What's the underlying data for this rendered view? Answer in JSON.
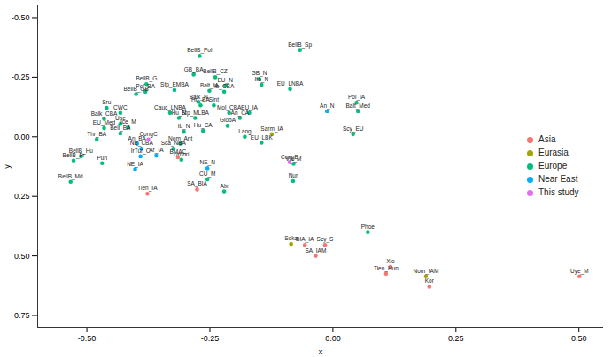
{
  "chart_data": {
    "type": "scatter",
    "x_label": "x",
    "y_label": "y",
    "xlim": [
      -0.6,
      0.55
    ],
    "ylim": [
      -0.55,
      0.8
    ],
    "xticks": [
      {
        "value": -0.5,
        "label": "-0.50"
      },
      {
        "value": -0.25,
        "label": "-0.25"
      },
      {
        "value": 0,
        "label": "0.00"
      },
      {
        "value": 0.25,
        "label": "0.25"
      },
      {
        "value": 0.5,
        "label": "0.50"
      }
    ],
    "yticks": [
      {
        "value": -0.5,
        "label": "-0.50"
      },
      {
        "value": -0.25,
        "label": "-0.25"
      },
      {
        "value": 0,
        "label": "0.00"
      },
      {
        "value": 0.25,
        "label": "0.25"
      },
      {
        "value": 0.5,
        "label": "0.50"
      },
      {
        "value": 0.75,
        "label": "0.75"
      }
    ],
    "grid": false,
    "legend": "right",
    "series": [
      {
        "name": "Asia",
        "color": "#F8766D",
        "labels": [
          "BMAC",
          "SA_BIA",
          "Tien_IA",
          "BIA_IA",
          "Scy_S",
          "SA_IAM",
          "Xio",
          "Tien_Hun",
          "Kor",
          "Uye_M"
        ],
        "x": [
          -0.315,
          -0.276,
          -0.377,
          -0.057,
          -0.016,
          -0.035,
          0.117,
          0.108,
          0.196,
          0.501
        ],
        "y": [
          0.086,
          0.221,
          0.239,
          0.454,
          0.454,
          0.5,
          0.546,
          0.575,
          0.629,
          0.586
        ]
      },
      {
        "name": "Eurasia",
        "color": "#A3A500",
        "labels": [
          "Sarm_IA",
          "Soka",
          "Nom_IAM"
        ],
        "x": [
          -0.124,
          -0.085,
          0.189
        ],
        "y": [
          -0.011,
          0.45,
          0.586
        ]
      },
      {
        "name": "Europe",
        "color": "#00BF7D",
        "labels": [
          "BellB_Pol",
          "BellB_Sp",
          "GB_BA",
          "BellB_CZ",
          "EU_N",
          "BellB_G",
          "GB_N",
          "EU_LNBA",
          "Pol_BA",
          "Ib_CBA",
          "BellB_GB",
          "Stp_EMBA",
          "Balk_N",
          "Balt_IA",
          "Ita_N",
          "Pol_IA",
          "Balt_Med",
          "EU_IA",
          "Mol_CBA",
          "An_CA",
          "Sru",
          "CWC",
          "Balk_CBA",
          "Une",
          "Ice_M",
          "Cauc_LNBA",
          "Hu_BA",
          "Sint",
          "Stp_MLBA",
          "Hu_N",
          "Ib_N",
          "Hu_CA",
          "GlobA",
          "Lang",
          "EU_Med",
          "Bell_BA",
          "Nom_Ant",
          "Thr_BA",
          "Sca_NBA",
          "EU_LBK",
          "Scy_EU",
          "Vik_M",
          "BellB_Hu",
          "BellB_Fr",
          "Pun",
          "Umbri",
          "CU_M",
          "Nur",
          "BellB_Md",
          "Alx",
          "Phoe"
        ],
        "x": [
          -0.271,
          -0.067,
          -0.283,
          -0.239,
          -0.219,
          -0.379,
          -0.15,
          -0.087,
          -0.381,
          -0.221,
          -0.4,
          -0.322,
          -0.273,
          -0.251,
          -0.145,
          0.048,
          0.051,
          -0.17,
          -0.211,
          -0.189,
          -0.46,
          -0.432,
          -0.465,
          -0.432,
          -0.416,
          -0.331,
          -0.269,
          -0.242,
          -0.28,
          -0.313,
          -0.303,
          -0.264,
          -0.214,
          -0.179,
          -0.465,
          -0.432,
          -0.31,
          -0.48,
          -0.324,
          -0.145,
          0.041,
          -0.08,
          -0.512,
          -0.527,
          -0.469,
          -0.308,
          -0.255,
          -0.081,
          -0.533,
          -0.221,
          0.071
        ],
        "y": [
          -0.339,
          -0.364,
          -0.261,
          -0.25,
          -0.214,
          -0.221,
          -0.243,
          -0.2,
          -0.189,
          -0.189,
          -0.179,
          -0.196,
          -0.146,
          -0.193,
          -0.218,
          -0.143,
          -0.107,
          -0.1,
          -0.1,
          -0.079,
          -0.121,
          -0.1,
          -0.075,
          -0.054,
          -0.039,
          -0.1,
          -0.132,
          -0.132,
          -0.079,
          -0.079,
          -0.021,
          -0.025,
          -0.046,
          0.0,
          -0.036,
          -0.014,
          0.029,
          0.011,
          0.05,
          0.025,
          -0.011,
          0.114,
          0.082,
          0.1,
          0.111,
          0.096,
          0.179,
          0.186,
          0.189,
          0.229,
          0.4
        ]
      },
      {
        "name": "Near East",
        "color": "#00B0F6",
        "labels": [
          "An_N",
          "An_BA",
          "NE_CBA",
          "IrTur_C",
          "Ar_IA",
          "NE_IA",
          "NE_N"
        ],
        "x": [
          -0.012,
          -0.398,
          -0.389,
          -0.391,
          -0.359,
          -0.402,
          -0.255
        ],
        "y": [
          -0.107,
          0.029,
          0.05,
          0.082,
          0.079,
          0.136,
          0.132
        ]
      },
      {
        "name": "This study",
        "color": "#E76BF3",
        "labels": [
          "CongC",
          "CongE"
        ],
        "x": [
          -0.375,
          -0.088
        ],
        "y": [
          0.011,
          0.107
        ]
      }
    ]
  }
}
